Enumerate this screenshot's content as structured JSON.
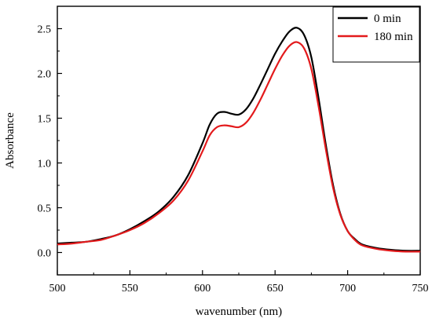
{
  "chart_data": {
    "type": "line",
    "title": "",
    "xlabel": "wavenumber  (nm)",
    "ylabel": "Absorbance",
    "xlim": [
      500,
      750
    ],
    "ylim": [
      -0.25,
      2.75
    ],
    "x_ticks": [
      500,
      550,
      600,
      650,
      700,
      750
    ],
    "x_tick_labels": [
      "500",
      "550",
      "600",
      "650",
      "700",
      "750"
    ],
    "y_ticks": [
      0.0,
      0.5,
      1.0,
      1.5,
      2.0,
      2.5
    ],
    "y_tick_labels": [
      "0.0",
      "0.5",
      "1.0",
      "1.5",
      "2.0",
      "2.5"
    ],
    "grid": false,
    "legend_position": "top-right",
    "x": [
      500,
      510,
      520,
      530,
      540,
      550,
      560,
      570,
      580,
      590,
      600,
      605,
      610,
      615,
      620,
      625,
      630,
      635,
      640,
      645,
      650,
      655,
      660,
      665,
      670,
      675,
      680,
      685,
      690,
      695,
      700,
      705,
      710,
      720,
      730,
      740,
      750
    ],
    "series": [
      {
        "name": "0 min",
        "color": "#000000",
        "values": [
          0.1,
          0.11,
          0.12,
          0.15,
          0.19,
          0.26,
          0.35,
          0.46,
          0.62,
          0.86,
          1.22,
          1.43,
          1.55,
          1.57,
          1.55,
          1.54,
          1.6,
          1.72,
          1.88,
          2.05,
          2.22,
          2.36,
          2.47,
          2.51,
          2.43,
          2.18,
          1.72,
          1.2,
          0.75,
          0.43,
          0.24,
          0.15,
          0.09,
          0.05,
          0.03,
          0.02,
          0.02
        ]
      },
      {
        "name": "180 min",
        "color": "#e31a1c",
        "values": [
          0.09,
          0.1,
          0.12,
          0.14,
          0.19,
          0.25,
          0.33,
          0.44,
          0.58,
          0.8,
          1.13,
          1.31,
          1.4,
          1.42,
          1.41,
          1.4,
          1.45,
          1.56,
          1.71,
          1.88,
          2.05,
          2.2,
          2.31,
          2.35,
          2.28,
          2.05,
          1.63,
          1.15,
          0.72,
          0.42,
          0.24,
          0.14,
          0.08,
          0.04,
          0.02,
          0.01,
          0.01
        ]
      }
    ]
  }
}
